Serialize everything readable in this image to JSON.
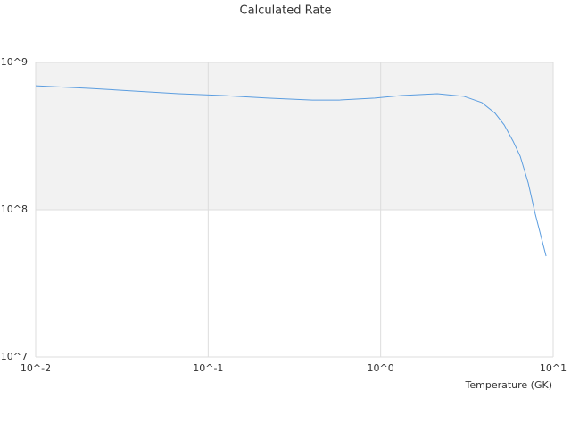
{
  "chart_data": {
    "type": "line",
    "title": "Calculated Rate",
    "x_label": "Temperature (GK)",
    "x": [
      0.01,
      0.0204,
      0.037,
      0.0673,
      0.122,
      0.221,
      0.402,
      0.574,
      0.925,
      1.32,
      2.13,
      3.04,
      3.86,
      4.61,
      5.2,
      5.85,
      6.44,
      7.17,
      7.88,
      9.1
    ],
    "series": [
      {
        "color": "#5b9de0",
        "values": [
          695000000,
          667000000,
          640000000,
          614000000,
          597000000,
          573000000,
          556000000,
          556000000,
          573000000,
          597000000,
          614000000,
          589000000,
          534000000,
          452000000,
          377000000,
          293000000,
          231000000,
          152000000,
          93300000,
          48400000
        ]
      }
    ],
    "xlim": [
      0.01,
      10
    ],
    "ylim": [
      10000000,
      1000000000
    ],
    "xticks": [
      {
        "value": 0.01,
        "label": "10^-2"
      },
      {
        "value": 0.1,
        "label": "10^-1"
      },
      {
        "value": 1,
        "label": "10^0"
      },
      {
        "value": 10,
        "label": "10^1"
      }
    ],
    "yticks": [
      {
        "value": 10000000,
        "label": "10^7"
      },
      {
        "value": 100000000,
        "label": "10^8"
      },
      {
        "value": 1000000000,
        "label": "10^9"
      }
    ],
    "log_x": true,
    "log_y": true,
    "grid": true,
    "band_color": "#f2f2f2"
  }
}
